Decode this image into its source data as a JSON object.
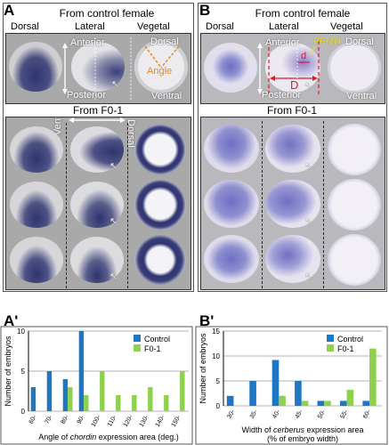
{
  "panel_A": {
    "label": "A",
    "header_control": "From control female",
    "views": [
      "Dorsal",
      "Lateral",
      "Vegetal"
    ],
    "anterior": "Anterior",
    "posterior": "Posterior",
    "dorsal": "Dorsal",
    "angle": "Angle",
    "ventral": "Ventral",
    "header_f0": "From F0-1",
    "f0_ventral": "Ventral",
    "f0_dorsal": "Dorsal"
  },
  "panel_B": {
    "label": "B",
    "header_control": "From control female",
    "views": [
      "Dorsal",
      "Lateral",
      "Vegetal"
    ],
    "anterior": "Anterior",
    "posterior": "Posterior",
    "pfmh": "PFMH",
    "d_small": "d",
    "d_big": "D",
    "dorsal": "Dorsal",
    "ventral": "Ventral",
    "header_f0": "From F0-1"
  },
  "colors": {
    "control": "#1f77c4",
    "f0": "#8fd14f",
    "stain": "#2e3470",
    "stain_b": "#6f6fc4",
    "angle": "#e8891f",
    "pfmh": "#f2e020",
    "measure": "#e0192a"
  },
  "chart_data": [
    {
      "type": "bar",
      "panel_label": "A'",
      "categories": [
        "60-",
        "70-",
        "80-",
        "90-",
        "100-",
        "110-",
        "120-",
        "130-",
        "140-",
        "150-"
      ],
      "series": [
        {
          "name": "Control",
          "values": [
            3,
            5,
            4,
            10,
            0,
            0,
            0,
            0,
            0,
            0
          ]
        },
        {
          "name": "F0-1",
          "values": [
            0,
            0,
            3,
            2,
            5,
            2,
            2,
            3,
            2,
            5
          ]
        }
      ],
      "xlabel_pre": "Angle of ",
      "xlabel_gene": "chordin",
      "xlabel_post": " expression area (deg.)",
      "ylabel": "Number of embryos",
      "ylim": [
        0,
        10
      ],
      "yticks": [
        0,
        5,
        10
      ],
      "legend": "top-right"
    },
    {
      "type": "bar",
      "panel_label": "B'",
      "categories": [
        "30-",
        "35-",
        "40-",
        "45-",
        "50-",
        "55-",
        "60-"
      ],
      "series": [
        {
          "name": "Control",
          "values": [
            2,
            5,
            9.2,
            5,
            1,
            1,
            1
          ]
        },
        {
          "name": "F0-1",
          "values": [
            0,
            0,
            2,
            1,
            1,
            3.2,
            11.5
          ]
        }
      ],
      "xlabel_pre": "Width of ",
      "xlabel_gene": "cerberus",
      "xlabel_post": " expression area",
      "xlabel_line2": "(% of embryo width)",
      "ylabel": "Number of embryos",
      "ylim": [
        0,
        15
      ],
      "yticks": [
        0,
        5,
        10,
        15
      ],
      "legend": "top-right"
    }
  ]
}
